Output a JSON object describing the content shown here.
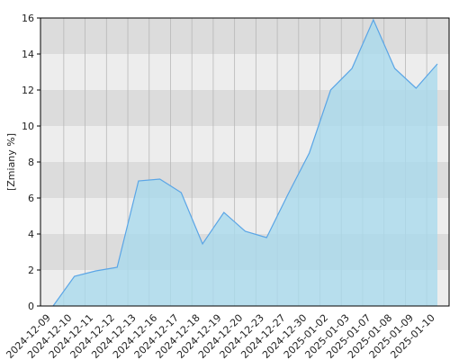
{
  "chart_data": {
    "type": "area",
    "ylabel": "[Zmiany %]",
    "categories": [
      "2024-12-09",
      "2024-12-10",
      "2024-12-11",
      "2024-12-12",
      "2024-12-13",
      "2024-12-16",
      "2024-12-17",
      "2024-12-18",
      "2024-12-19",
      "2024-12-20",
      "2024-12-23",
      "2024-12-27",
      "2024-12-30",
      "2025-01-02",
      "2025-01-03",
      "2025-01-07",
      "2025-01-08",
      "2025-01-09",
      "2025-01-10"
    ],
    "values": [
      0,
      1.65,
      1.95,
      2.15,
      6.95,
      7.05,
      6.3,
      3.45,
      5.2,
      4.15,
      3.8,
      6.2,
      8.5,
      12.0,
      13.2,
      15.9,
      13.2,
      12.1,
      13.45
    ],
    "color": "#5aa5e6",
    "fill": "#a9d9ec",
    "ylim": [
      0,
      16
    ],
    "yticks": [
      0,
      2,
      4,
      6,
      8,
      10,
      12,
      14,
      16
    ],
    "grid": true
  }
}
